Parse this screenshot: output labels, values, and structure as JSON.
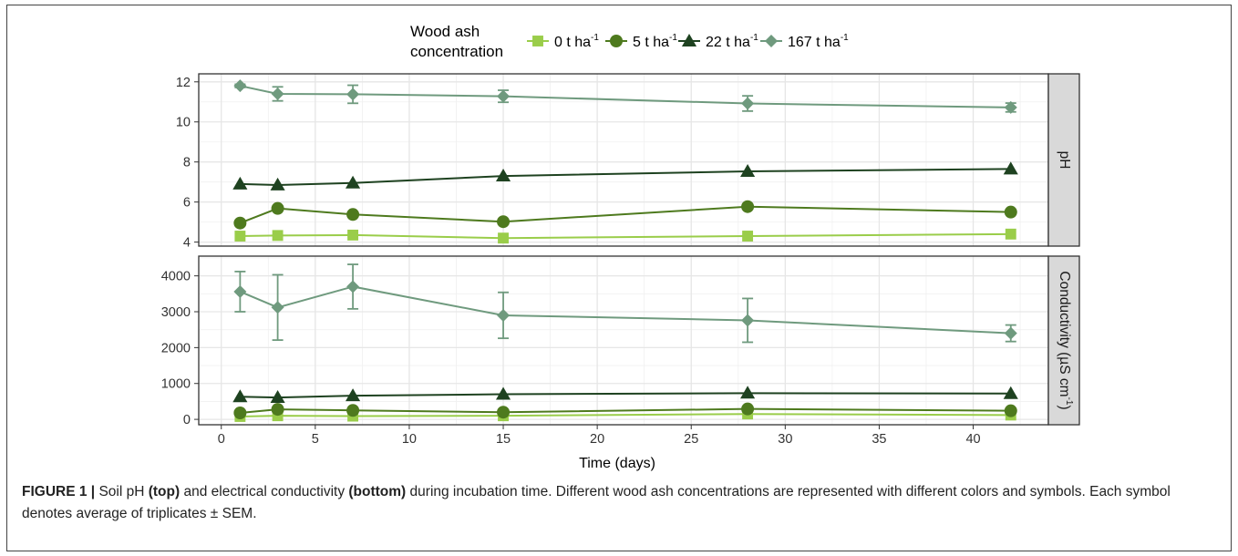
{
  "legend": {
    "title_line1": "Wood ash",
    "title_line2": "concentration",
    "entries": [
      {
        "name": "0 t ha",
        "sup": "-1"
      },
      {
        "name": "5 t ha",
        "sup": "-1"
      },
      {
        "name": "22 t ha",
        "sup": "-1"
      },
      {
        "name": "167 t ha",
        "sup": "-1"
      }
    ]
  },
  "chart_data": {
    "type": "line",
    "xlabel": "Time (days)",
    "x_ticks": [
      "0",
      "5",
      "10",
      "15",
      "20",
      "25",
      "30",
      "35",
      "40"
    ],
    "xlim": [
      -1.2,
      44
    ],
    "legend_position": "top",
    "grid": true,
    "x": [
      1,
      3,
      7,
      15,
      28,
      42
    ],
    "colors": [
      "#9ACD4A",
      "#4E7A1E",
      "#1E4220",
      "#6F9A7E"
    ],
    "markers": [
      "square",
      "circle",
      "triangle",
      "diamond"
    ],
    "panels": [
      {
        "strip_label": "pH",
        "ylim": [
          3.8,
          12.4
        ],
        "y_ticks": [
          "4",
          "6",
          "8",
          "10",
          "12"
        ],
        "series": [
          {
            "name": "0 t ha-1",
            "values": [
              4.3,
              4.33,
              4.35,
              4.2,
              4.3,
              4.4
            ],
            "sem": [
              0.05,
              0.05,
              0.05,
              0.05,
              0.05,
              0.05
            ]
          },
          {
            "name": "5 t ha-1",
            "values": [
              4.95,
              5.68,
              5.38,
              5.02,
              5.77,
              5.5
            ],
            "sem": [
              0.05,
              0.05,
              0.05,
              0.05,
              0.05,
              0.05
            ]
          },
          {
            "name": "22 t ha-1",
            "values": [
              6.9,
              6.85,
              6.95,
              7.3,
              7.53,
              7.65
            ],
            "sem": [
              0.05,
              0.05,
              0.05,
              0.05,
              0.05,
              0.05
            ]
          },
          {
            "name": "167 t ha-1",
            "values": [
              11.8,
              11.4,
              11.38,
              11.28,
              10.92,
              10.72
            ],
            "sem": [
              0.08,
              0.35,
              0.45,
              0.3,
              0.38,
              0.22
            ]
          }
        ]
      },
      {
        "strip_label": "Conductivity (µS cm",
        "strip_sup": "-1",
        "strip_close": ")",
        "ylim": [
          -150,
          4550
        ],
        "y_ticks": [
          "0",
          "1000",
          "2000",
          "3000",
          "4000"
        ],
        "series": [
          {
            "name": "0 t ha-1",
            "values": [
              80,
              100,
              90,
              100,
              150,
              120
            ],
            "sem": [
              0,
              0,
              0,
              0,
              0,
              0
            ]
          },
          {
            "name": "5 t ha-1",
            "values": [
              180,
              280,
              250,
              200,
              290,
              240
            ],
            "sem": [
              0,
              0,
              0,
              0,
              0,
              0
            ]
          },
          {
            "name": "22 t ha-1",
            "values": [
              630,
              610,
              660,
              700,
              730,
              720
            ],
            "sem": [
              0,
              0,
              0,
              0,
              0,
              0
            ]
          },
          {
            "name": "167 t ha-1",
            "values": [
              3560,
              3120,
              3700,
              2900,
              2760,
              2400
            ],
            "sem": [
              560,
              910,
              620,
              640,
              610,
              230
            ]
          }
        ]
      }
    ]
  },
  "caption": {
    "label": "FIGURE 1 |",
    "t1": " Soil pH ",
    "b1": "(top)",
    "t2": " and electrical conductivity ",
    "b2": "(bottom)",
    "t3": " during incubation time. Different wood ash concentrations are represented with different colors and symbols. Each symbol denotes average of triplicates ± SEM."
  }
}
